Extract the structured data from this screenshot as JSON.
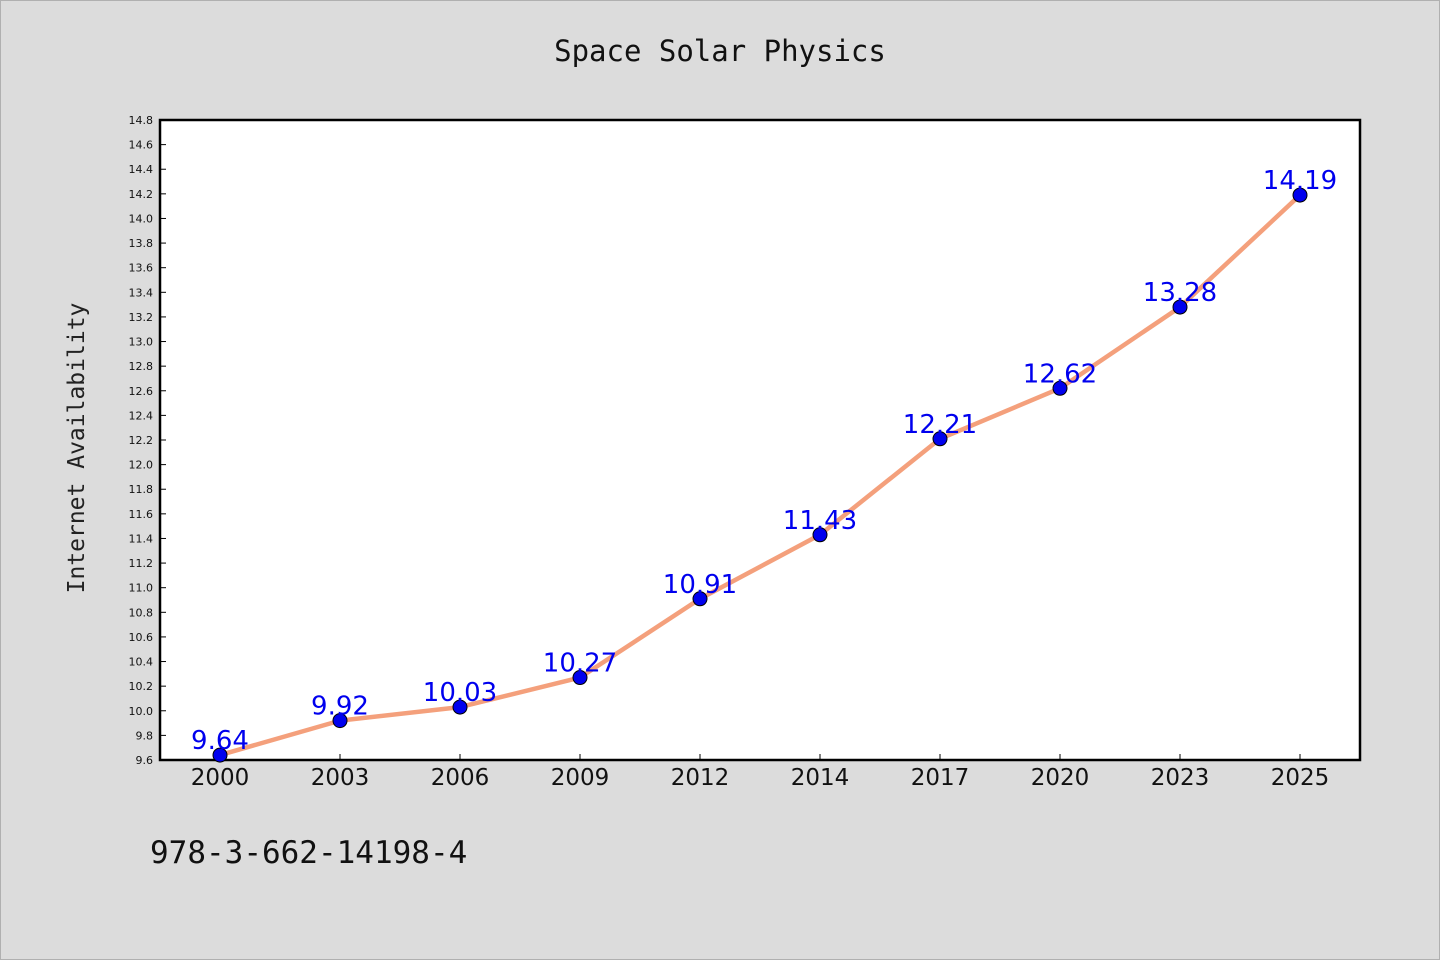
{
  "chart_data": {
    "type": "line",
    "title": "Space Solar Physics",
    "xlabel": "",
    "ylabel": "Internet Availability",
    "categories": [
      "2000",
      "2003",
      "2006",
      "2009",
      "2012",
      "2014",
      "2017",
      "2020",
      "2023",
      "2025"
    ],
    "series": [
      {
        "values": [
          9.64,
          9.92,
          10.03,
          10.27,
          10.91,
          11.43,
          12.21,
          12.62,
          13.28,
          14.19
        ],
        "data_labels": [
          "9.64",
          "9.92",
          "10.03",
          "10.27",
          "10.91",
          "11.43",
          "12.21",
          "12.62",
          "13.28",
          "14.19"
        ]
      }
    ],
    "ylim": [
      9.6,
      14.8
    ],
    "y_ticks": [
      "9.6",
      "9.8",
      "10.0",
      "10.2",
      "10.4",
      "10.6",
      "10.8",
      "11.0",
      "11.2",
      "11.4",
      "11.6",
      "11.8",
      "12.0",
      "12.2",
      "12.4",
      "12.6",
      "12.8",
      "13.0",
      "13.2",
      "13.4",
      "13.6",
      "13.8",
      "14.0",
      "14.2",
      "14.4",
      "14.6",
      "14.8"
    ],
    "grid": false,
    "legend": "none",
    "colors": {
      "line": "#f4a07c",
      "marker": "#0000ee",
      "data_label": "#0000ee",
      "plot_background": "#ffffff",
      "page_background": "#dcdcdc"
    }
  },
  "footer": {
    "isbn": "978-3-662-14198-4"
  }
}
